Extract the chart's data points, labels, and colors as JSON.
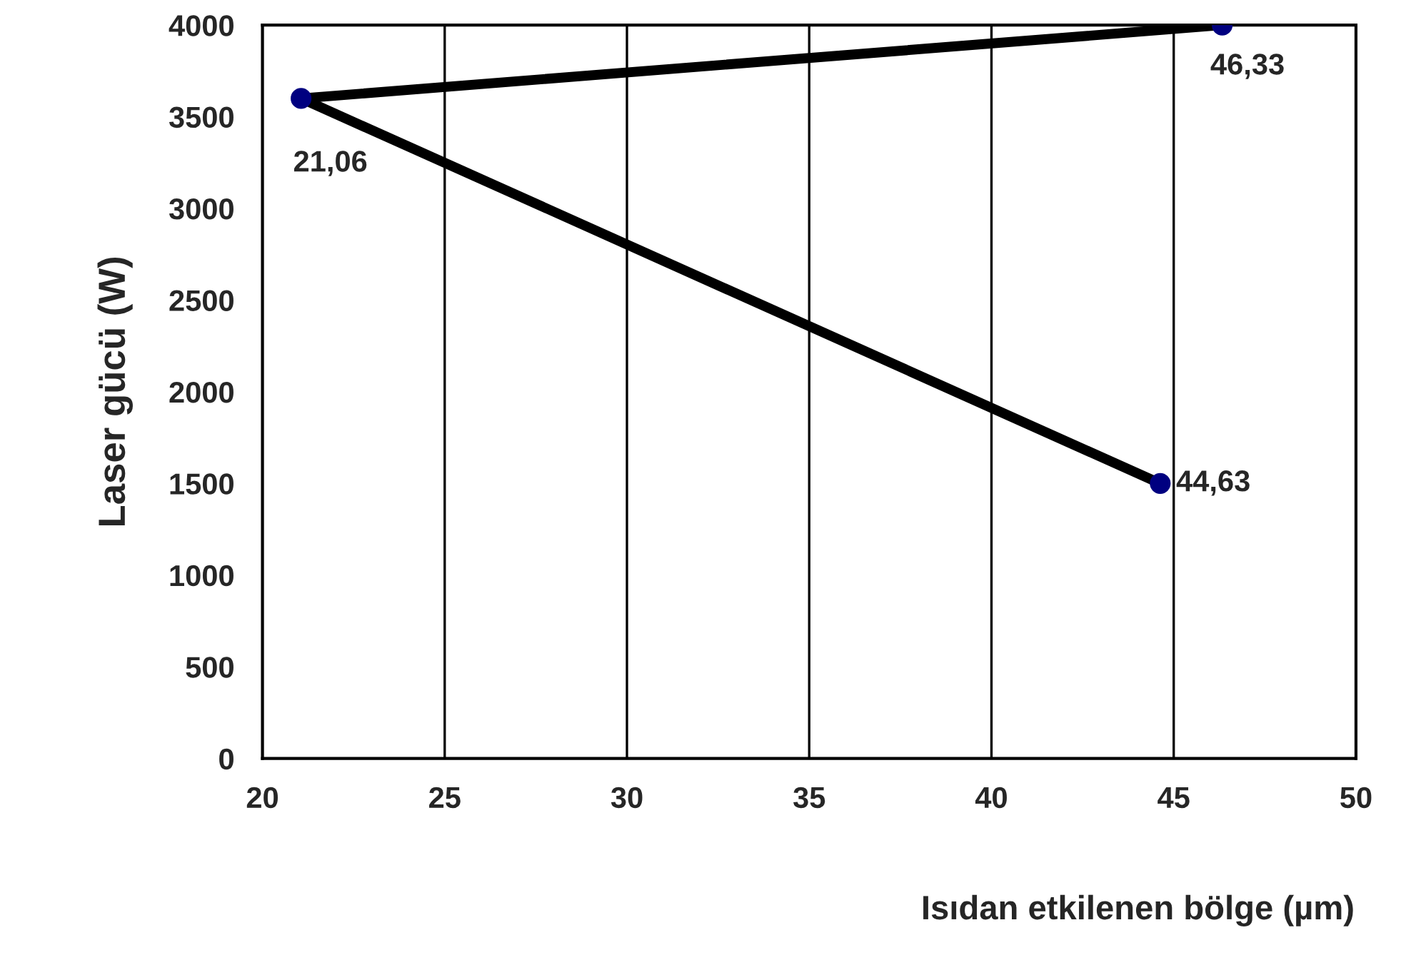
{
  "chart_data": {
    "type": "line",
    "xlabel": "Isıdan etkilenen bölge (µm)",
    "ylabel": "Laser gücü (W)",
    "series": [
      {
        "color": "#000000",
        "colors": [
          "#000080",
          "#000080",
          "#000080"
        ],
        "x": [
          44.63,
          21.06,
          46.33
        ],
        "values": [
          1500,
          3600,
          4000
        ]
      }
    ],
    "annotations": [
      {
        "text": "44,63",
        "x": 44.63,
        "y": 1500
      },
      {
        "text": "21,06",
        "x": 21.06,
        "y": 3600
      },
      {
        "text": "46,33",
        "x": 46.33,
        "y": 4000
      }
    ],
    "xlim": [
      20,
      50
    ],
    "xticks": [
      20,
      25,
      30,
      35,
      40,
      45,
      50
    ],
    "ylim": [
      0,
      4000
    ],
    "yticks": [
      0,
      500,
      1000,
      1500,
      2000,
      2500,
      3000,
      3500,
      4000
    ],
    "grid": "x",
    "marker": "circle",
    "line_style": "solid"
  }
}
